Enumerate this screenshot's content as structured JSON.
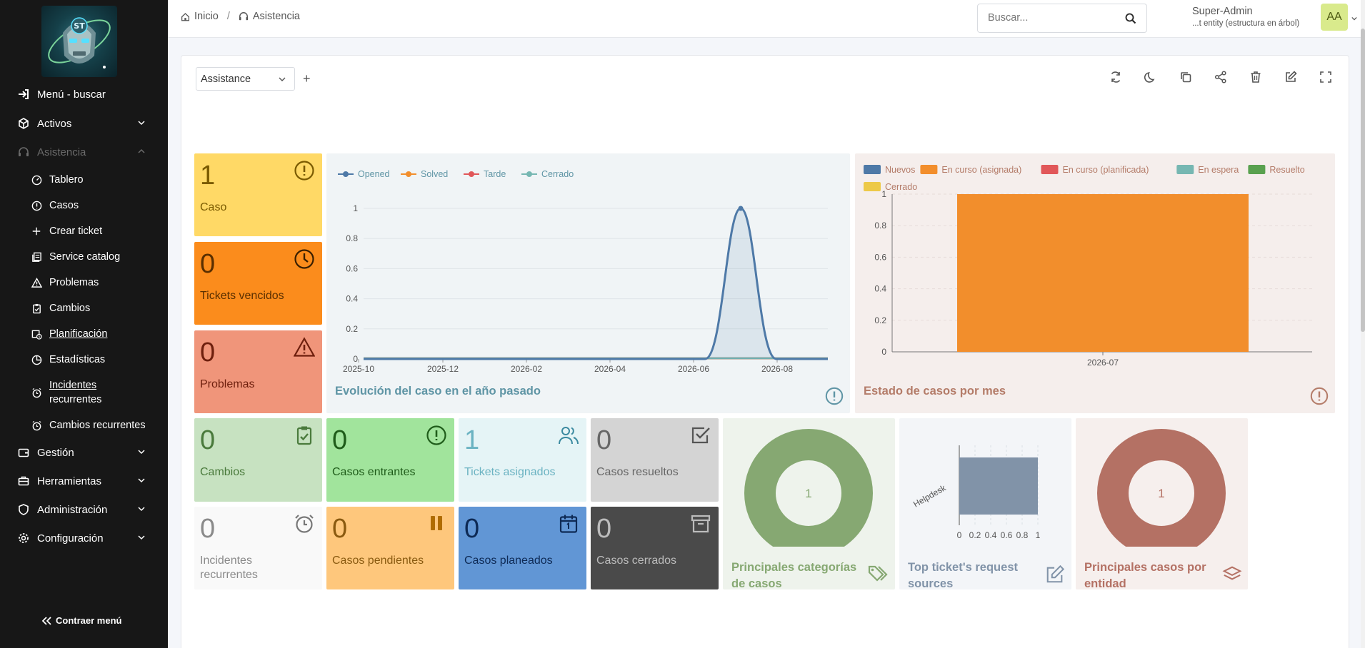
{
  "sidebar": {
    "menu_search": "Menú - buscar",
    "activos": "Activos",
    "asistencia": "Asistencia",
    "tablero": "Tablero",
    "casos": "Casos",
    "crear_ticket": "Crear ticket",
    "service_catalog": "Service catalog",
    "problemas": "Problemas",
    "cambios": "Cambios",
    "planificacion": "Planificación",
    "estadisticas": "Estadísticas",
    "incidentes_1": "Incidentes",
    "incidentes_2": "recurrentes",
    "cambios_recurrentes": "Cambios recurrentes",
    "gestion": "Gestión",
    "herramientas": "Herramientas",
    "administracion": "Administración",
    "configuracion": "Configuración",
    "collapse": "Contraer menú"
  },
  "header": {
    "crumb_home": "Inicio",
    "crumb_assist": "Asistencia",
    "search_placeholder": "Buscar...",
    "user_name": "Super-Admin",
    "user_entity": "...t entity (estructura en árbol)",
    "avatar": "AA"
  },
  "dashboard": {
    "selected": "Assistance",
    "add": "+"
  },
  "cards": {
    "caso": {
      "value": "1",
      "label": "Caso",
      "bg": "#ffd966"
    },
    "vencidos": {
      "value": "0",
      "label": "Tickets vencidos",
      "bg": "#fb8c1c"
    },
    "problemas": {
      "value": "0",
      "label": "Problemas",
      "bg": "#f0957a"
    },
    "cambios": {
      "value": "0",
      "label": "Cambios",
      "bg": "#c7e2c1"
    },
    "entrantes": {
      "value": "0",
      "label": "Casos entrantes",
      "bg": "#a1e49c"
    },
    "asignados": {
      "value": "1",
      "label": "Tickets asignados",
      "bg": "#e5f4f6"
    },
    "resueltos": {
      "value": "0",
      "label": "Casos resueltos",
      "bg": "#d4d4d4"
    },
    "recurrentes": {
      "value": "0",
      "label_1": "Incidentes",
      "label_2": "recurrentes",
      "bg": "#f9f9f9"
    },
    "pendientes": {
      "value": "0",
      "label": "Casos pendientes",
      "bg": "#fec77c"
    },
    "planeados": {
      "value": "0",
      "label": "Casos planeados",
      "bg": "#6196d5"
    },
    "cerrados": {
      "value": "0",
      "label": "Casos cerrados",
      "bg": "#4a4a4a"
    }
  },
  "chart_data": [
    {
      "type": "line",
      "title": "Evolución del caso en el año pasado",
      "x": [
        "2025-10",
        "2025-12",
        "2026-02",
        "2026-04",
        "2026-06",
        "2026-08"
      ],
      "ylim": [
        0,
        1
      ],
      "yticks": [
        "0",
        "0.2",
        "0.4",
        "0.6",
        "0.8",
        "1"
      ],
      "series": [
        {
          "name": "Opened",
          "color": "#4e79a7",
          "peak_x": "2026-07",
          "peak": 1
        },
        {
          "name": "Solved",
          "color": "#f28e2c",
          "peak": 0
        },
        {
          "name": "Tarde",
          "color": "#e15759",
          "peak": 0
        },
        {
          "name": "Cerrado",
          "color": "#76b7b2",
          "peak": 0
        }
      ],
      "legend": "top-left"
    },
    {
      "type": "bar",
      "title": "Estado de casos por mes",
      "categories": [
        "2026-07"
      ],
      "ylim": [
        0,
        1
      ],
      "yticks": [
        "0",
        "0.2",
        "0.4",
        "0.6",
        "0.8",
        "1"
      ],
      "series": [
        {
          "name": "Nuevos",
          "color": "#4e79a7",
          "values": [
            0
          ]
        },
        {
          "name": "En curso (asignada)",
          "color": "#f28e2c",
          "values": [
            1
          ]
        },
        {
          "name": "En curso (planificada)",
          "color": "#e15759",
          "values": [
            0
          ]
        },
        {
          "name": "En espera",
          "color": "#76b7b2",
          "values": [
            0
          ]
        },
        {
          "name": "Resuelto",
          "color": "#59a14f",
          "values": [
            0
          ]
        },
        {
          "name": "Cerrado",
          "color": "#edc948",
          "values": [
            0
          ]
        }
      ],
      "legend": "top"
    },
    {
      "type": "pie",
      "title": "Principales categorías de casos",
      "values": [
        1
      ],
      "center_label": "1",
      "color": "#86a872"
    },
    {
      "type": "bar",
      "title": "Top ticket's request sources",
      "categories": [
        "Helpdesk"
      ],
      "values": [
        1
      ],
      "xticks": [
        "0",
        "0.2",
        "0.4",
        "0.6",
        "0.8",
        "1"
      ],
      "color": "#8193a8"
    },
    {
      "type": "pie",
      "title": "Principales casos por entidad",
      "values": [
        1
      ],
      "center_label": "1",
      "color": "#b47164"
    }
  ]
}
